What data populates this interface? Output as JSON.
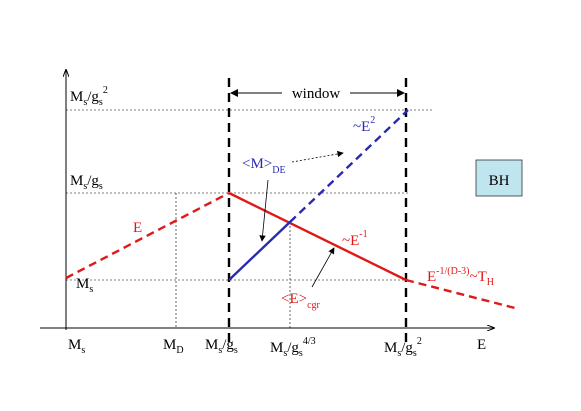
{
  "diagram": {
    "colors": {
      "red": "#e01818",
      "blue": "#2a2ab0",
      "bh_box": "#bfe6ee"
    },
    "x_axis_label": "E",
    "window_label": "window",
    "bh_label": "BH",
    "y_labels": {
      "top": {
        "base": "M",
        "sub": "s",
        "mid": "/g",
        "sub2": "s",
        "sup": "2"
      },
      "mid": {
        "base": "M",
        "sub": "s",
        "mid": "/g",
        "sub2": "s"
      },
      "low": {
        "base": "M",
        "sub": "s"
      }
    },
    "x_labels": {
      "ms": {
        "base": "M",
        "sub": "s"
      },
      "md": {
        "base": "M",
        "sub": "D"
      },
      "ms_gs": {
        "base": "M",
        "sub": "s",
        "mid": "/g",
        "sub2": "s"
      },
      "ms_gs43": {
        "base": "M",
        "sub": "s",
        "mid": "/g",
        "sub2": "s",
        "sup": "4/3"
      },
      "ms_gs2": {
        "base": "M",
        "sub": "s",
        "mid": "/g",
        "sub2": "s",
        "sup": "2"
      }
    },
    "curve_labels": {
      "e_left": "E",
      "e_sq": {
        "base": "~E",
        "sup": "2"
      },
      "e_inv": {
        "base": "~E",
        "sup": "-1"
      },
      "m_de": {
        "base": "<M>",
        "sub": "DE"
      },
      "e_cgr": {
        "base": "<E>",
        "sub": "cgr"
      },
      "hawking": {
        "base": "E",
        "sup": "-1/(D-3)",
        "mid": "~T",
        "sub": "H"
      }
    }
  }
}
